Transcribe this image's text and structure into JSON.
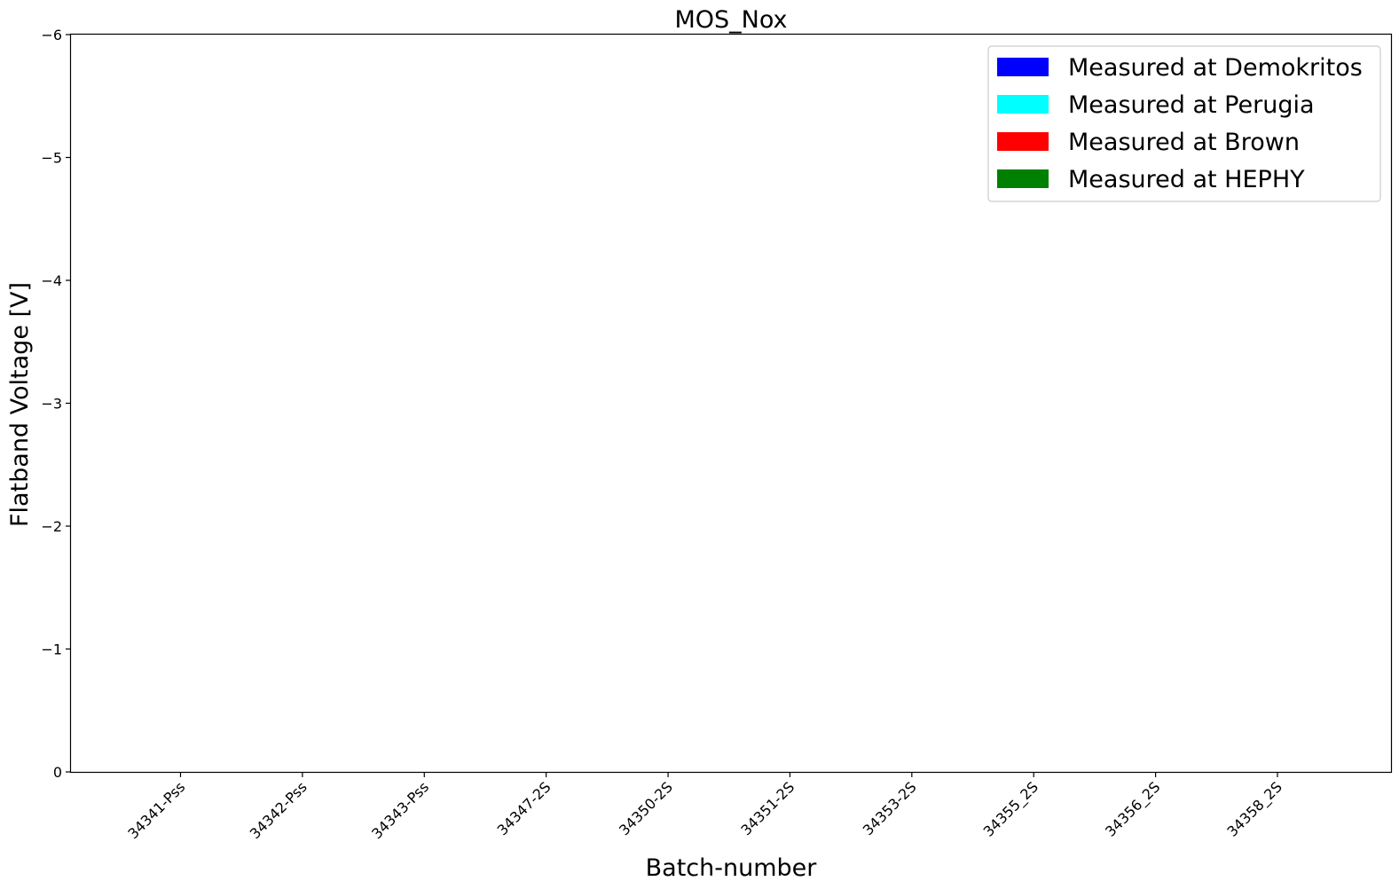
{
  "chart_data": {
    "type": "bar",
    "title": "MOS_Nox",
    "xlabel": "Batch-number",
    "ylabel": "Flatband Voltage [V]",
    "categories": [
      "34341-Pss",
      "34342-Pss",
      "34343-Pss",
      "34347-2S",
      "34350-2S",
      "34351-2S",
      "34353-2S",
      "34355_2S",
      "34356_2S",
      "34358_2S"
    ],
    "ylim": [
      0,
      -6
    ],
    "y_inverted": true,
    "yticks": [
      0,
      -1,
      -2,
      -3,
      -4,
      -5,
      -6
    ],
    "ytick_labels": [
      "0",
      "−1",
      "−2",
      "−3",
      "−4",
      "−5",
      "−6"
    ],
    "grid": false,
    "legend_position": "top-right",
    "series": [
      {
        "name": "Measured at Demokritos",
        "color": "#0000ff",
        "values": [
          null,
          null,
          null,
          null,
          null,
          null,
          null,
          null,
          null,
          null
        ]
      },
      {
        "name": "Measured at Perugia",
        "color": "#00ffff",
        "values": [
          null,
          null,
          null,
          null,
          null,
          null,
          null,
          null,
          null,
          null
        ]
      },
      {
        "name": "Measured at Brown",
        "color": "#ff0000",
        "values": [
          null,
          null,
          null,
          null,
          null,
          null,
          null,
          null,
          null,
          null
        ]
      },
      {
        "name": "Measured at HEPHY",
        "color": "#008000",
        "values": [
          null,
          null,
          null,
          null,
          null,
          null,
          null,
          null,
          null,
          null
        ]
      }
    ]
  }
}
